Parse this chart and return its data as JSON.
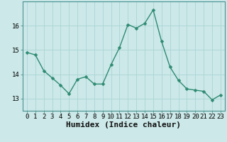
{
  "xlabel": "Humidex (Indice chaleur)",
  "ylabel": "",
  "x": [
    0,
    1,
    2,
    3,
    4,
    5,
    6,
    7,
    8,
    9,
    10,
    11,
    12,
    13,
    14,
    15,
    16,
    17,
    18,
    19,
    20,
    21,
    22,
    23
  ],
  "y": [
    14.9,
    14.8,
    14.15,
    13.85,
    13.55,
    13.2,
    13.8,
    13.9,
    13.6,
    13.6,
    14.4,
    15.1,
    16.05,
    15.9,
    16.1,
    16.65,
    15.35,
    14.3,
    13.75,
    13.4,
    13.35,
    13.3,
    12.95,
    13.15
  ],
  "line_color": "#2e8b72",
  "marker": "D",
  "marker_size": 2.5,
  "line_width": 1.0,
  "bg_color": "#cce8e8",
  "grid_color": "#aad4d4",
  "yticks": [
    13,
    14,
    15,
    16
  ],
  "ylim": [
    12.5,
    17.0
  ],
  "xlim": [
    -0.5,
    23.5
  ],
  "tick_fontsize": 6.5,
  "xlabel_fontsize": 8,
  "title_fontsize": 7
}
